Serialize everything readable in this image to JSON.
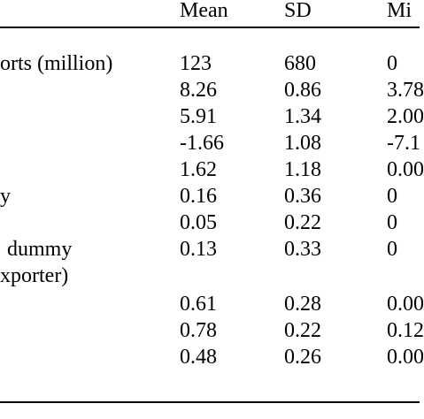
{
  "table": {
    "headers": [
      "Mean",
      "SD",
      "Mi"
    ],
    "rows": [
      {
        "label": "orts (million)",
        "values": [
          "123",
          "680",
          "0"
        ]
      },
      {
        "label": "",
        "values": [
          "8.26",
          "0.86",
          "3.78"
        ]
      },
      {
        "label": "",
        "values": [
          "5.91",
          "1.34",
          "2.00"
        ]
      },
      {
        "label": "",
        "values": [
          "-1.66",
          "1.08",
          "-7.1"
        ]
      },
      {
        "label": "",
        "values": [
          "1.62",
          "1.18",
          "0.00"
        ]
      },
      {
        "label": "y",
        "values": [
          "0.16",
          "0.36",
          "0"
        ]
      },
      {
        "label": "",
        "values": [
          "0.05",
          "0.22",
          "0"
        ]
      },
      {
        "label": "dummy",
        "values": [
          "0.13",
          "0.33",
          "0"
        ]
      },
      {
        "label": "xporter)",
        "values": [
          "",
          "",
          ""
        ]
      },
      {
        "label": "",
        "values": [
          "0.61",
          "0.28",
          "0.00"
        ]
      },
      {
        "label": "",
        "values": [
          "0.78",
          "0.22",
          "0.12"
        ]
      },
      {
        "label": "",
        "values": [
          "0.48",
          "0.26",
          "0.00"
        ]
      }
    ]
  }
}
